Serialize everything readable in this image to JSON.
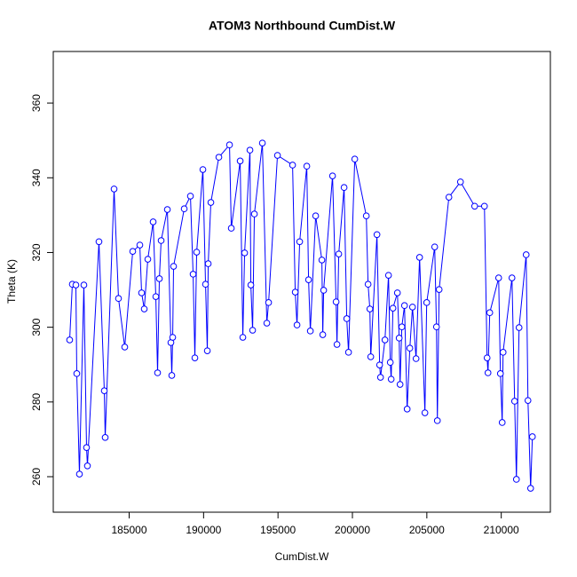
{
  "chart_data": {
    "type": "line",
    "title": "ATOM3 Northbound CumDist.W",
    "xlabel": "CumDist.W",
    "ylabel": "Theta (K)",
    "color": "#0000ff",
    "markers": true,
    "x": [
      181002,
      181181,
      181420,
      181480,
      181659,
      181957,
      182136,
      182196,
      182971,
      183329,
      183389,
      183986,
      184284,
      184702,
      185239,
      185716,
      185835,
      186014,
      186253,
      186611,
      186790,
      186909,
      187029,
      187148,
      187566,
      187804,
      187864,
      187924,
      187983,
      188699,
      189117,
      189296,
      189415,
      189535,
      189953,
      190131,
      190251,
      190311,
      190489,
      191026,
      191742,
      191862,
      192458,
      192637,
      192757,
      193115,
      193175,
      193294,
      193413,
      193950,
      194249,
      194368,
      194965,
      195979,
      196158,
      196277,
      196456,
      196934,
      197053,
      197172,
      197530,
      197948,
      198008,
      198067,
      198664,
      198903,
      198963,
      199082,
      199440,
      199619,
      199739,
      200157,
      200933,
      201052,
      201172,
      201231,
      201649,
      201828,
      201888,
      202186,
      202425,
      202544,
      202604,
      202723,
      203022,
      203141,
      203201,
      203320,
      203499,
      203678,
      203857,
      204036,
      204275,
      204513,
      204871,
      204991,
      205528,
      205648,
      205707,
      205827,
      206483,
      207259,
      208213,
      208870,
      209049,
      209109,
      209228,
      209825,
      209944,
      210063,
      210123,
      210720,
      210899,
      211018,
      211197,
      211674,
      211794,
      211973,
      212092
    ],
    "values": [
      296.6,
      311.5,
      311.3,
      287.6,
      260.7,
      311.3,
      267.8,
      262.9,
      322.9,
      283.0,
      270.5,
      337.0,
      307.7,
      294.7,
      320.3,
      322.0,
      309.2,
      304.9,
      318.2,
      328.2,
      308.2,
      287.8,
      313.0,
      323.2,
      331.5,
      295.9,
      287.1,
      297.3,
      316.3,
      331.7,
      335.1,
      314.2,
      291.8,
      320.1,
      342.2,
      311.5,
      293.7,
      317.0,
      333.4,
      345.5,
      348.8,
      326.5,
      344.5,
      297.3,
      319.9,
      347.4,
      311.3,
      299.2,
      330.3,
      349.3,
      301.1,
      306.6,
      346.0,
      343.4,
      309.4,
      300.6,
      322.9,
      343.1,
      312.7,
      299.0,
      329.8,
      318.0,
      298.0,
      309.9,
      340.5,
      306.8,
      295.4,
      319.6,
      337.4,
      302.3,
      293.3,
      345.0,
      329.8,
      311.5,
      304.9,
      292.1,
      324.8,
      289.9,
      286.6,
      296.6,
      313.9,
      290.6,
      286.1,
      305.1,
      309.2,
      297.1,
      284.7,
      300.1,
      305.8,
      278.1,
      294.4,
      305.4,
      291.6,
      318.7,
      277.1,
      306.6,
      321.5,
      300.1,
      275.0,
      310.1,
      334.8,
      338.9,
      332.4,
      332.4,
      291.8,
      287.8,
      303.9,
      313.2,
      287.6,
      274.5,
      293.3,
      313.2,
      280.2,
      259.3,
      299.9,
      319.4,
      280.4,
      256.9,
      270.7
    ],
    "xlim": [
      179900,
      213300
    ],
    "xticks": [
      185000,
      190000,
      195000,
      200000,
      205000,
      210000
    ],
    "ylim": [
      250.5,
      373.8
    ],
    "yticks": [
      260,
      280,
      300,
      320,
      340,
      360
    ]
  }
}
